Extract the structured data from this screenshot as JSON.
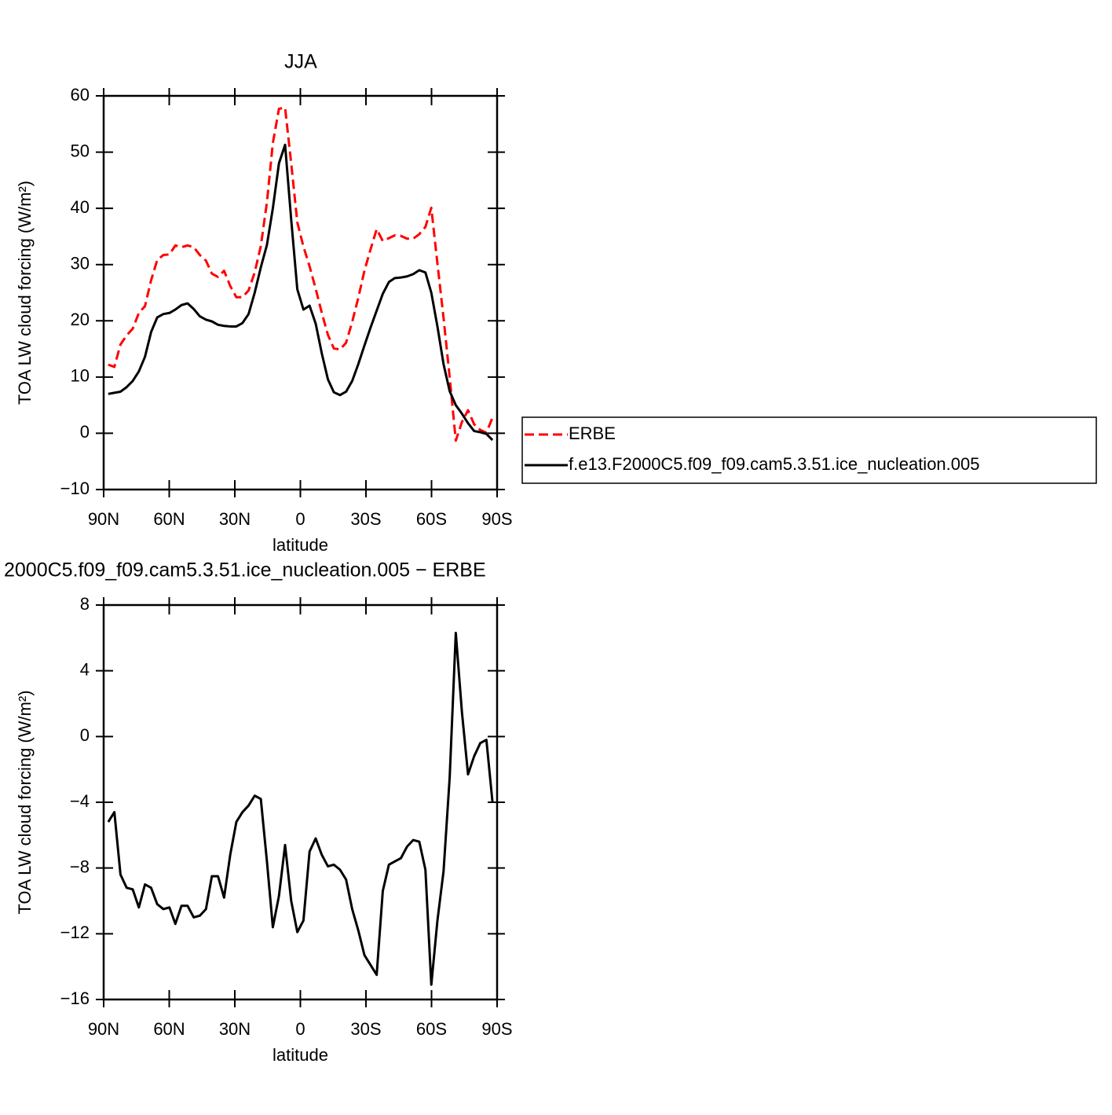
{
  "chart_data": [
    {
      "type": "line",
      "title": "JJA",
      "ylabel": "TOA LW cloud forcing (W/m²)",
      "xlabel": "latitude",
      "x": [
        87.9,
        85.1,
        82.3,
        79.5,
        76.7,
        73.9,
        71.1,
        68.3,
        65.5,
        62.7,
        59.9,
        57.2,
        54.4,
        51.6,
        48.8,
        46.0,
        43.2,
        40.5,
        37.7,
        34.9,
        32.1,
        29.3,
        26.5,
        23.7,
        20.9,
        18.1,
        15.3,
        12.6,
        9.8,
        7.0,
        4.2,
        1.4,
        -1.4,
        -4.2,
        -7.0,
        -9.8,
        -12.6,
        -15.3,
        -18.1,
        -20.9,
        -23.7,
        -26.5,
        -29.3,
        -32.1,
        -34.9,
        -37.7,
        -40.5,
        -43.2,
        -46.0,
        -48.8,
        -51.6,
        -54.4,
        -57.2,
        -59.9,
        -62.7,
        -65.5,
        -68.3,
        -71.1,
        -73.9,
        -76.7,
        -79.5,
        -82.3,
        -85.1,
        -87.9
      ],
      "xlim": [
        90,
        -90
      ],
      "xticks": [
        {
          "value": 90,
          "label": "90N"
        },
        {
          "value": 60,
          "label": "60N"
        },
        {
          "value": 30,
          "label": "30N"
        },
        0,
        {
          "value": -30,
          "label": "30S"
        },
        {
          "value": -60,
          "label": "60S"
        },
        {
          "value": -90,
          "label": "90S"
        }
      ],
      "ylim": [
        -10,
        60
      ],
      "yticks": [
        {
          "value": -10,
          "label": "−10"
        },
        0,
        10,
        20,
        30,
        40,
        50,
        60
      ],
      "legend": "outside-right",
      "series": [
        {
          "name": "ERBE",
          "color": "#ff0000",
          "style": "dashed",
          "values": [
            12.2,
            11.8,
            15.8,
            17.4,
            18.6,
            21.4,
            22.6,
            27.2,
            30.8,
            31.7,
            31.8,
            33.4,
            33.1,
            33.4,
            33.1,
            31.7,
            30.7,
            28.4,
            27.8,
            28.9,
            26.2,
            24.2,
            24.2,
            25.4,
            28.6,
            33.3,
            41.1,
            51.6,
            57.7,
            57.9,
            48.0,
            37.5,
            33.2,
            29.7,
            25.7,
            21.4,
            17.5,
            15.1,
            14.9,
            16.1,
            19.8,
            24.1,
            28.9,
            32.7,
            36.3,
            34.2,
            34.7,
            35.2,
            35.1,
            34.6,
            34.6,
            35.4,
            36.7,
            40.1,
            30.2,
            20.5,
            10.0,
            -1.3,
            2.0,
            4.1,
            1.6,
            0.6,
            0.1,
            2.8
          ]
        },
        {
          "name": "f.e13.F2000C5.f09_f09.cam5.3.51.ice_nucleation.005",
          "color": "#000000",
          "style": "solid",
          "values": [
            7,
            7.2,
            7.4,
            8.2,
            9.3,
            11,
            13.6,
            18,
            20.6,
            21.2,
            21.4,
            22,
            22.8,
            23.1,
            22.1,
            20.8,
            20.2,
            19.9,
            19.3,
            19.1,
            19,
            19,
            19.6,
            21.2,
            25,
            29.5,
            33.5,
            40,
            48,
            51.3,
            38,
            25.6,
            22,
            22.7,
            19.5,
            14.2,
            9.6,
            7.3,
            6.8,
            7.4,
            9.3,
            12.3,
            15.6,
            18.8,
            21.8,
            24.8,
            26.9,
            27.6,
            27.7,
            27.9,
            28.3,
            29,
            28.6,
            25,
            19,
            12.3,
            7.5,
            5,
            3.5,
            1.8,
            0.4,
            0.2,
            -0.1,
            -1.2
          ]
        }
      ]
    },
    {
      "type": "line",
      "title": "2000C5.f09_f09.cam5.3.51.ice_nucleation.005 − ERBE",
      "ylabel": "TOA LW cloud forcing (W/m²)",
      "xlabel": "latitude",
      "x": [
        87.9,
        85.1,
        82.3,
        79.5,
        76.7,
        73.9,
        71.1,
        68.3,
        65.5,
        62.7,
        59.9,
        57.2,
        54.4,
        51.6,
        48.8,
        46.0,
        43.2,
        40.5,
        37.7,
        34.9,
        32.1,
        29.3,
        26.5,
        23.7,
        20.9,
        18.1,
        15.3,
        12.6,
        9.8,
        7.0,
        4.2,
        1.4,
        -1.4,
        -4.2,
        -7.0,
        -9.8,
        -12.6,
        -15.3,
        -18.1,
        -20.9,
        -23.7,
        -26.5,
        -29.3,
        -32.1,
        -34.9,
        -37.7,
        -40.5,
        -43.2,
        -46.0,
        -48.8,
        -51.6,
        -54.4,
        -57.2,
        -59.9,
        -62.7,
        -65.5,
        -68.3,
        -71.1,
        -73.9,
        -76.7,
        -79.5,
        -82.3,
        -85.1,
        -87.9
      ],
      "xlim": [
        90,
        -90
      ],
      "xticks": [
        {
          "value": 90,
          "label": "90N"
        },
        {
          "value": 60,
          "label": "60N"
        },
        {
          "value": 30,
          "label": "30N"
        },
        0,
        {
          "value": -30,
          "label": "30S"
        },
        {
          "value": -60,
          "label": "60S"
        },
        {
          "value": -90,
          "label": "90S"
        }
      ],
      "ylim": [
        -16,
        8
      ],
      "yticks": [
        {
          "value": -16,
          "label": "−16"
        },
        {
          "value": -12,
          "label": "−12"
        },
        {
          "value": -8,
          "label": "−8"
        },
        {
          "value": -4,
          "label": "−4"
        },
        0,
        4,
        8
      ],
      "series": [
        {
          "color": "#000000",
          "style": "solid",
          "values": [
            -5.2,
            -4.6,
            -8.4,
            -9.2,
            -9.3,
            -10.4,
            -9.0,
            -9.2,
            -10.2,
            -10.5,
            -10.4,
            -11.4,
            -10.3,
            -10.3,
            -11.0,
            -10.9,
            -10.5,
            -8.5,
            -8.5,
            -9.8,
            -7.2,
            -5.2,
            -4.6,
            -4.2,
            -3.6,
            -3.8,
            -7.6,
            -11.6,
            -9.7,
            -6.6,
            -10.0,
            -11.9,
            -11.2,
            -7.0,
            -6.2,
            -7.2,
            -7.9,
            -7.8,
            -8.1,
            -8.7,
            -10.5,
            -11.8,
            -13.3,
            -13.9,
            -14.5,
            -9.4,
            -7.8,
            -7.6,
            -7.4,
            -6.7,
            -6.3,
            -6.4,
            -8.1,
            -15.1,
            -11.2,
            -8.2,
            -2.5,
            6.3,
            1.5,
            -2.3,
            -1.2,
            -0.4,
            -0.2,
            -4.0
          ]
        }
      ]
    }
  ]
}
